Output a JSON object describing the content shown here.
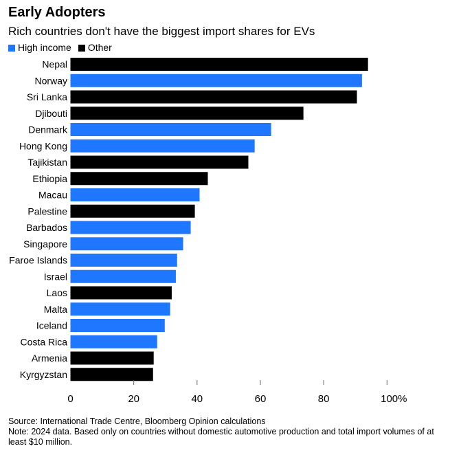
{
  "chart_data": {
    "type": "bar",
    "orientation": "horizontal",
    "title": "Early Adopters",
    "subtitle": "Rich countries don't have the biggest import shares for EVs",
    "legend": [
      {
        "name": "High income",
        "color": "#1f77ff"
      },
      {
        "name": "Other",
        "color": "#000000"
      }
    ],
    "categories": [
      "Nepal",
      "Norway",
      "Sri Lanka",
      "Djibouti",
      "Denmark",
      "Hong Kong",
      "Tajikistan",
      "Ethiopia",
      "Macau",
      "Palestine",
      "Barbados",
      "Singapore",
      "Faroe Islands",
      "Israel",
      "Laos",
      "Malta",
      "Iceland",
      "Costa Rica",
      "Armenia",
      "Kyrgyzstan"
    ],
    "values": [
      94.0,
      92.1,
      90.5,
      73.6,
      63.4,
      58.2,
      56.2,
      43.4,
      40.8,
      39.3,
      38.0,
      35.6,
      33.7,
      33.3,
      32.0,
      31.5,
      29.8,
      27.4,
      26.3,
      26.1
    ],
    "groups": [
      "Other",
      "High income",
      "Other",
      "Other",
      "High income",
      "High income",
      "Other",
      "Other",
      "High income",
      "Other",
      "High income",
      "High income",
      "High income",
      "High income",
      "Other",
      "High income",
      "High income",
      "High income",
      "Other",
      "Other"
    ],
    "xlim": [
      0,
      100
    ],
    "xticks": [
      "0",
      "20",
      "40",
      "60",
      "80",
      "100%"
    ],
    "grid": false,
    "legend_placement": "top-left"
  },
  "notes": {
    "source": "Source: International Trade Centre, Bloomberg Opinion calculations",
    "note": "Note: 2024 data. Based only on countries without domestic automotive production and total import volumes of at least $10 million."
  }
}
